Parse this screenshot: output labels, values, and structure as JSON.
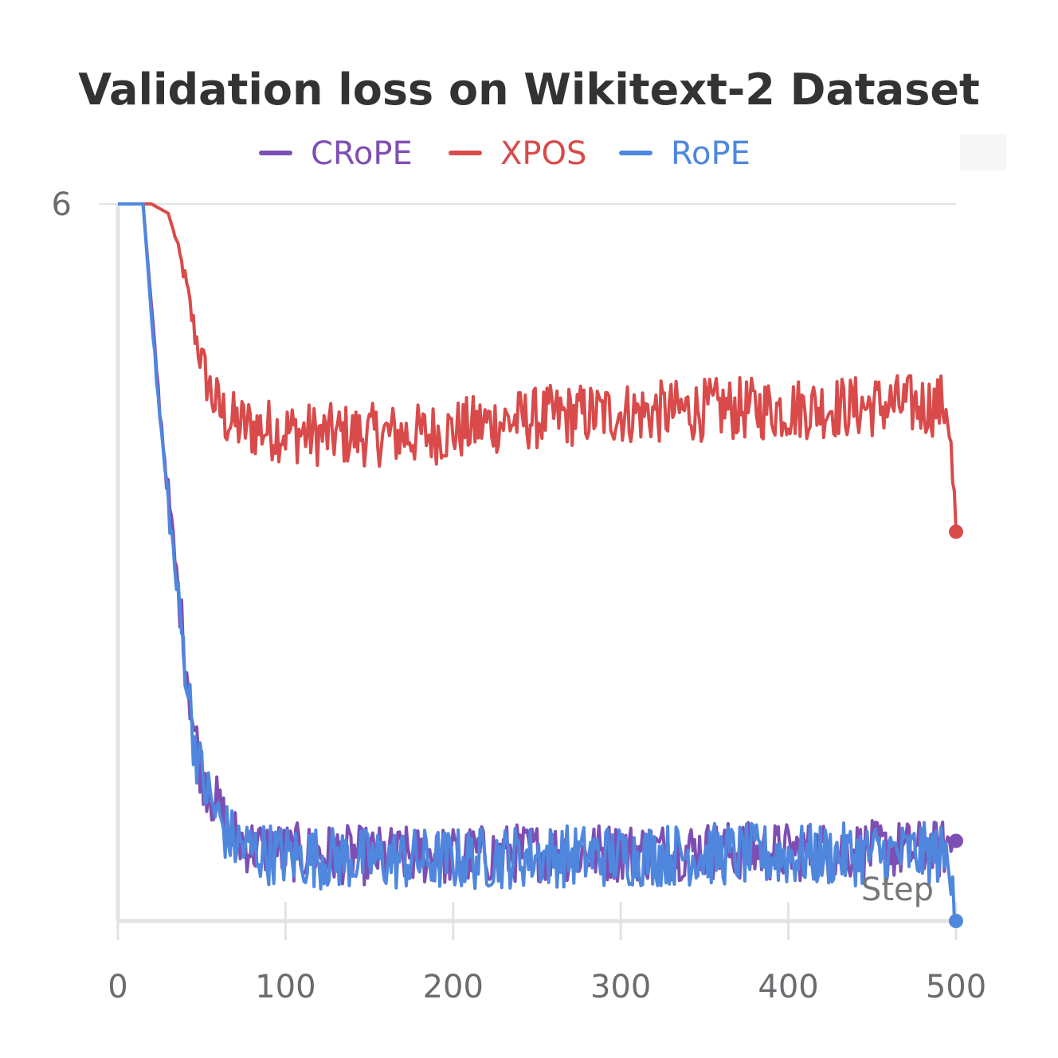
{
  "chart_data": {
    "type": "line",
    "title": "Validation loss on Wikitext-2 Dataset",
    "xlabel": "Step",
    "ylabel": "",
    "xlim": [
      0,
      500
    ],
    "ylim": [
      2.15,
      6
    ],
    "x_ticks": [
      "0",
      "100",
      "200",
      "300",
      "400",
      "500"
    ],
    "y_ticks": [
      "6"
    ],
    "x_tick_values": [
      0,
      100,
      200,
      300,
      400,
      500
    ],
    "y_tick_values": [
      6
    ],
    "legend_position": "top-center",
    "series": [
      {
        "name": "CRoPE",
        "color": "#7e4fb3",
        "x": [
          0,
          15,
          20,
          25,
          30,
          35,
          40,
          45,
          50,
          55,
          60,
          65,
          70,
          80,
          100,
          150,
          200,
          250,
          300,
          350,
          400,
          450,
          490,
          500
        ],
        "y": [
          6.0,
          6.0,
          5.45,
          4.9,
          4.45,
          4.0,
          3.6,
          3.2,
          2.95,
          2.85,
          2.75,
          2.65,
          2.6,
          2.55,
          2.52,
          2.5,
          2.5,
          2.52,
          2.52,
          2.53,
          2.52,
          2.53,
          2.53,
          2.58
        ]
      },
      {
        "name": "XPOS",
        "color": "#d94b4b",
        "x": [
          0,
          20,
          30,
          35,
          40,
          45,
          50,
          55,
          60,
          65,
          70,
          80,
          100,
          120,
          140,
          160,
          180,
          200,
          220,
          240,
          260,
          280,
          300,
          320,
          340,
          360,
          380,
          400,
          420,
          440,
          460,
          480,
          495,
          500
        ],
        "y": [
          6.0,
          6.0,
          5.95,
          5.8,
          5.6,
          5.35,
          5.15,
          5.0,
          4.9,
          4.85,
          4.82,
          4.8,
          4.78,
          4.76,
          4.76,
          4.76,
          4.76,
          4.78,
          4.82,
          4.84,
          4.86,
          4.87,
          4.88,
          4.88,
          4.89,
          4.9,
          4.9,
          4.9,
          4.91,
          4.91,
          4.92,
          4.92,
          4.92,
          4.24
        ]
      },
      {
        "name": "RoPE",
        "color": "#4f87de",
        "x": [
          0,
          15,
          20,
          25,
          30,
          35,
          40,
          45,
          50,
          55,
          60,
          65,
          70,
          80,
          100,
          150,
          200,
          250,
          300,
          350,
          400,
          450,
          490,
          498,
          500
        ],
        "y": [
          6.0,
          6.0,
          5.4,
          4.85,
          4.4,
          3.95,
          3.55,
          3.15,
          2.92,
          2.8,
          2.7,
          2.62,
          2.57,
          2.53,
          2.5,
          2.48,
          2.48,
          2.5,
          2.5,
          2.51,
          2.5,
          2.51,
          2.51,
          2.45,
          2.15
        ]
      }
    ]
  }
}
